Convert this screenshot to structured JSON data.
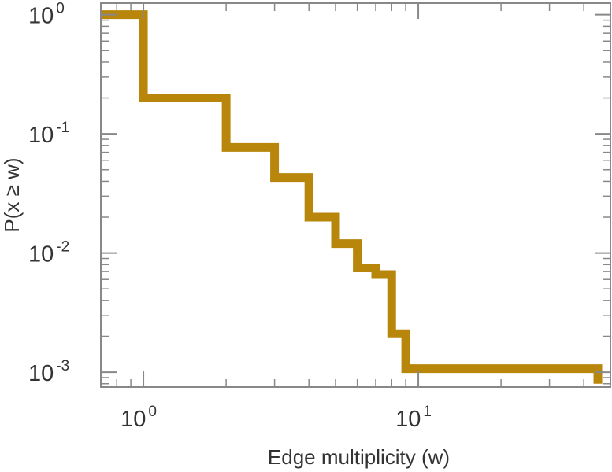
{
  "chart_data": {
    "type": "line",
    "step": true,
    "xscale": "log",
    "yscale": "log",
    "xlabel": "Edge multiplicity (w)",
    "ylabel": "P(x ≥ w)",
    "xlim": [
      0.7,
      50
    ],
    "ylim": [
      0.00075,
      1.25
    ],
    "grid": false,
    "x_ticks": [
      {
        "value": 1,
        "base": "10",
        "exp": "0"
      },
      {
        "value": 10,
        "base": "10",
        "exp": "1"
      }
    ],
    "y_ticks": [
      {
        "value": 1,
        "base": "10",
        "exp": "0"
      },
      {
        "value": 0.1,
        "base": "10",
        "exp": "-1"
      },
      {
        "value": 0.01,
        "base": "10",
        "exp": "-2"
      },
      {
        "value": 0.001,
        "base": "10",
        "exp": "-3"
      }
    ],
    "series": [
      {
        "color": "#b8860b",
        "points": [
          {
            "x": 0.7,
            "y": 1
          },
          {
            "x": 1,
            "y": 1
          },
          {
            "x": 1,
            "y": 0.2
          },
          {
            "x": 2,
            "y": 0.2
          },
          {
            "x": 2,
            "y": 0.077
          },
          {
            "x": 3,
            "y": 0.077
          },
          {
            "x": 3,
            "y": 0.043
          },
          {
            "x": 4,
            "y": 0.043
          },
          {
            "x": 4,
            "y": 0.02
          },
          {
            "x": 5,
            "y": 0.02
          },
          {
            "x": 5,
            "y": 0.012
          },
          {
            "x": 6,
            "y": 0.012
          },
          {
            "x": 6,
            "y": 0.0075
          },
          {
            "x": 7,
            "y": 0.0075
          },
          {
            "x": 7,
            "y": 0.0066
          },
          {
            "x": 8,
            "y": 0.0066
          },
          {
            "x": 8,
            "y": 0.0021
          },
          {
            "x": 9,
            "y": 0.0021
          },
          {
            "x": 9,
            "y": 0.00107
          },
          {
            "x": 45,
            "y": 0.00107
          },
          {
            "x": 45,
            "y": 0.0008
          }
        ]
      }
    ]
  }
}
